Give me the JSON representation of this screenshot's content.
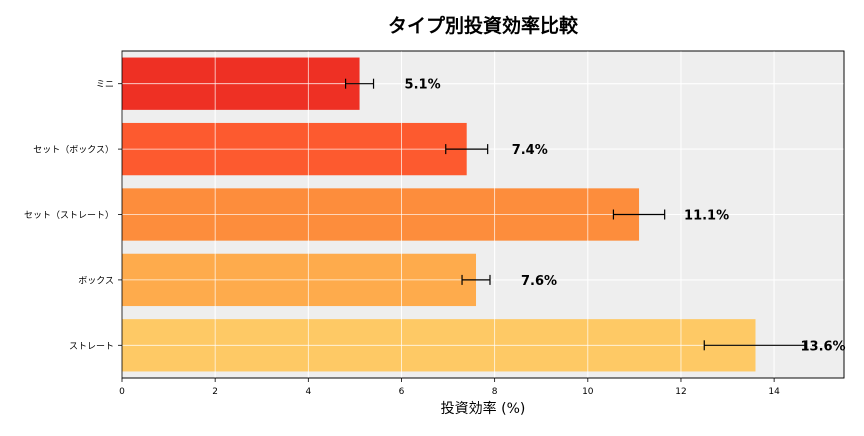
{
  "chart_data": {
    "type": "bar",
    "orientation": "horizontal",
    "title": "タイプ別投資効率比較",
    "xlabel": "投資効率 (%)",
    "ylabel": "",
    "xlim": [
      0,
      15.5
    ],
    "xticks": [
      0,
      2,
      4,
      6,
      8,
      10,
      12,
      14
    ],
    "grid": true,
    "background_color": "#eeeeee",
    "categories": [
      "ミニ",
      "セット（ボックス）",
      "セット（ストレート）",
      "ボックス",
      "ストレート"
    ],
    "values": [
      5.1,
      7.4,
      11.1,
      7.6,
      13.6
    ],
    "errors": [
      0.3,
      0.45,
      0.55,
      0.3,
      1.1
    ],
    "data_labels": [
      "5.1%",
      "7.4%",
      "11.1%",
      "7.6%",
      "13.6%"
    ],
    "colors": [
      "#ee3024",
      "#fd5a2f",
      "#fd8d3c",
      "#feab4c",
      "#fec965"
    ]
  }
}
